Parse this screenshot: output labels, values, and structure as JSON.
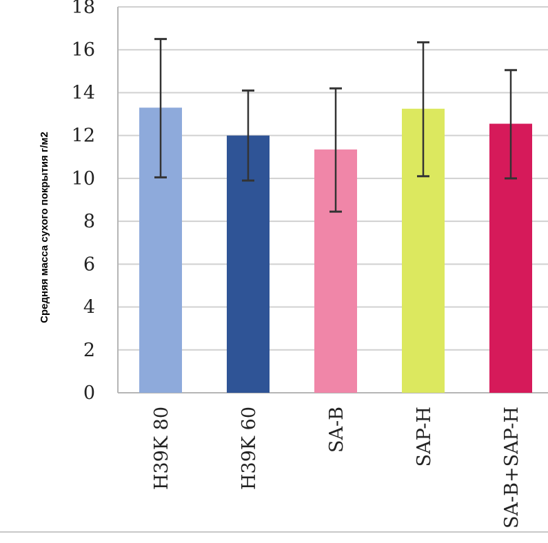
{
  "chart_data": {
    "type": "bar",
    "title": "",
    "xlabel": "",
    "ylabel": "Средняя масса сухого покрытия г/м2",
    "ylim": [
      0,
      18
    ],
    "yticks": [
      0,
      2,
      4,
      6,
      8,
      10,
      12,
      14,
      16,
      18
    ],
    "grid": true,
    "legend": "none",
    "categories": [
      "H39K 80",
      "H39K 60",
      "SA-B",
      "SAP-H",
      "SA-B+SAP-H"
    ],
    "values": [
      13.3,
      12.0,
      11.35,
      13.25,
      12.55
    ],
    "error_low": [
      10.05,
      9.9,
      8.45,
      10.1,
      10.0
    ],
    "error_high": [
      16.5,
      14.1,
      14.2,
      16.35,
      15.05
    ],
    "colors": [
      "#8eaadb",
      "#2f5496",
      "#f086a8",
      "#dce85f",
      "#d61a5a"
    ],
    "grid_color": "#d0d0d0",
    "axis_color": "#b5b5b5",
    "error_bar_color": "#333333"
  }
}
